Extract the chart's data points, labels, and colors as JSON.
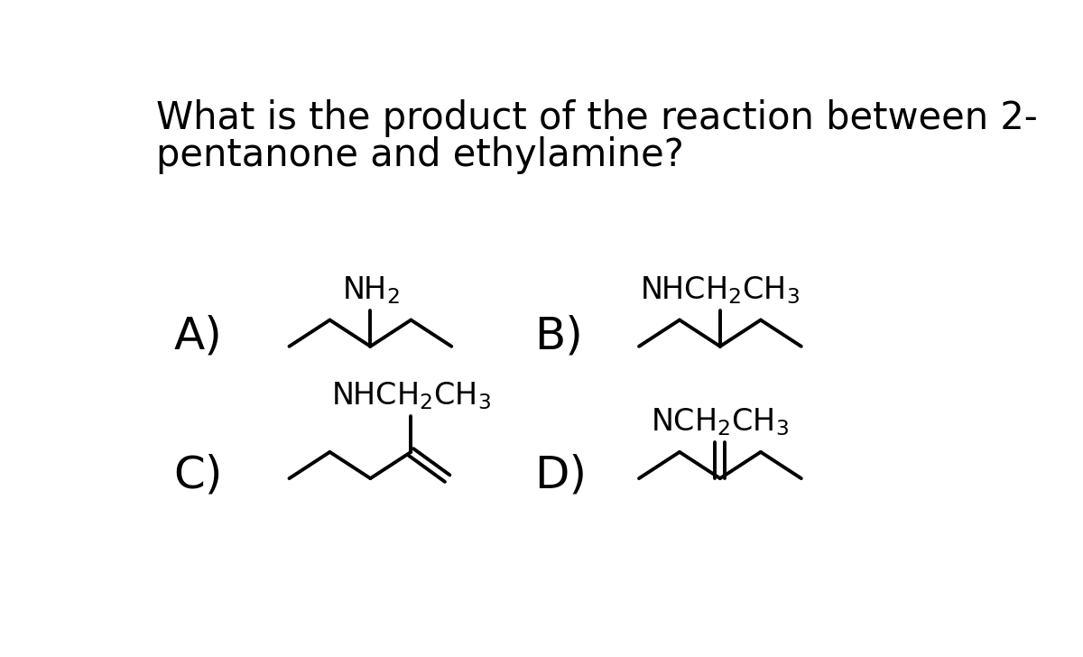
{
  "title_line1": "What is the product of the reaction between 2-",
  "title_line2": "pentanone and ethylamine?",
  "bg_color": "#ffffff",
  "text_color": "#000000",
  "font_size_title": 30,
  "font_size_label": 36,
  "font_size_chem": 24,
  "label_A": "A)",
  "label_B": "B)",
  "label_C": "C)",
  "label_D": "D)",
  "sub_A": "NH$_2$",
  "sub_B": "NHCH$_2$CH$_3$",
  "sub_C": "NHCH$_2$CH$_3$",
  "sub_D": "NCH$_2$CH$_3$"
}
